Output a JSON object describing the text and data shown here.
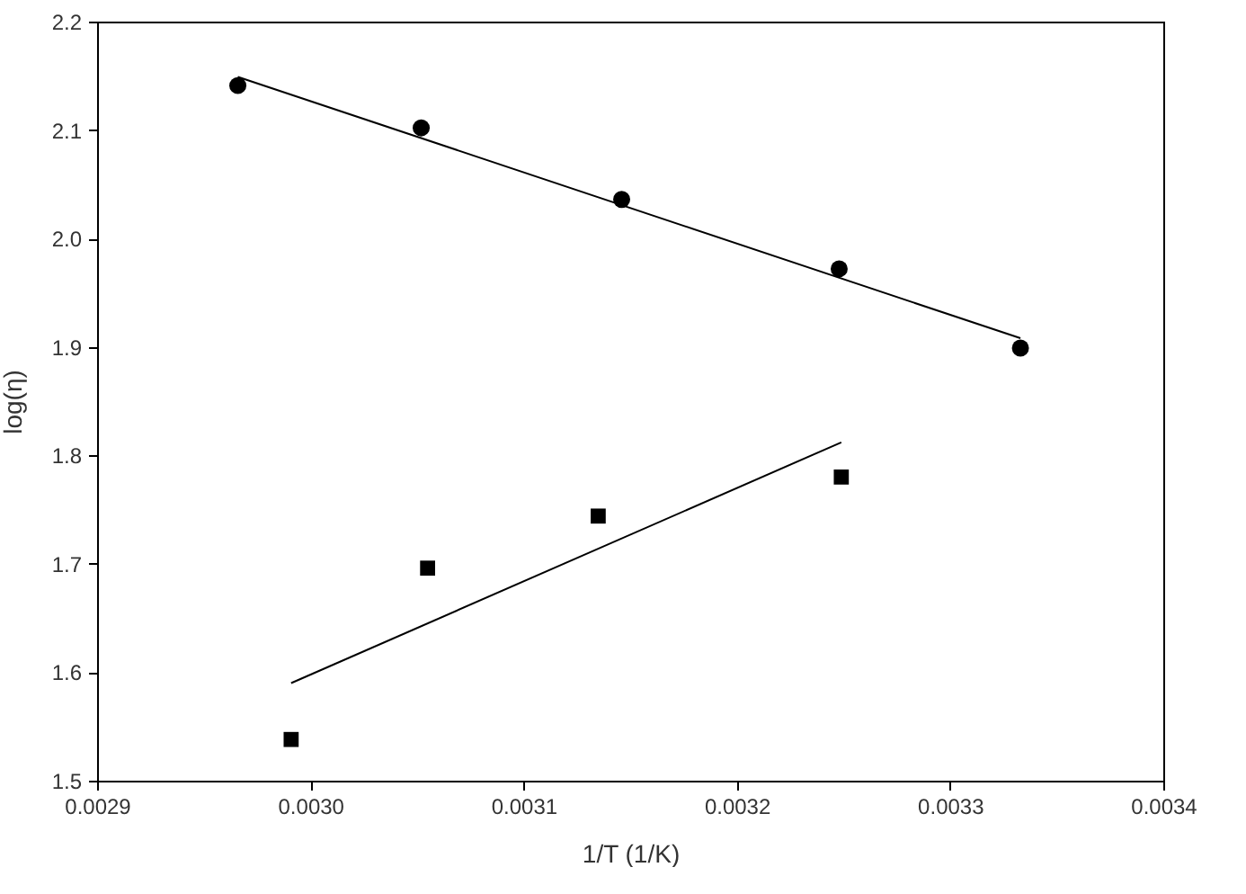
{
  "chart_data": {
    "type": "scatter",
    "xlabel": "1/T (1/K)",
    "ylabel": "log(η)",
    "xlim": [
      0.0029,
      0.0034
    ],
    "ylim": [
      1.5,
      2.2
    ],
    "xticks": [
      0.0029,
      {
        "value": 0.003,
        "label": "0.0030"
      },
      0.0031,
      0.0032,
      0.0033,
      0.0034
    ],
    "yticks": [
      1.5,
      1.6,
      1.7,
      1.8,
      1.9,
      {
        "value": 2,
        "label": "2.0"
      },
      2.1,
      2.2
    ],
    "grid": false,
    "series": [
      {
        "marker": "circle",
        "color": "#000000",
        "x": [
          0.002966,
          0.003052,
          0.003146,
          0.003248,
          0.003333
        ],
        "values": [
          2.141,
          2.102,
          2.036,
          1.972,
          1.899
        ]
      },
      {
        "type": "line",
        "color": "#000000",
        "x": [
          0.002966,
          0.003333
        ],
        "values": [
          2.149,
          1.908
        ]
      },
      {
        "marker": "square",
        "color": "#000000",
        "x": [
          0.002991,
          0.003055,
          0.003135,
          0.003249
        ],
        "values": [
          1.538,
          1.696,
          1.744,
          1.78
        ]
      },
      {
        "type": "line",
        "color": "#000000",
        "x": [
          0.002991,
          0.003249
        ],
        "values": [
          1.59,
          1.812
        ]
      }
    ]
  }
}
